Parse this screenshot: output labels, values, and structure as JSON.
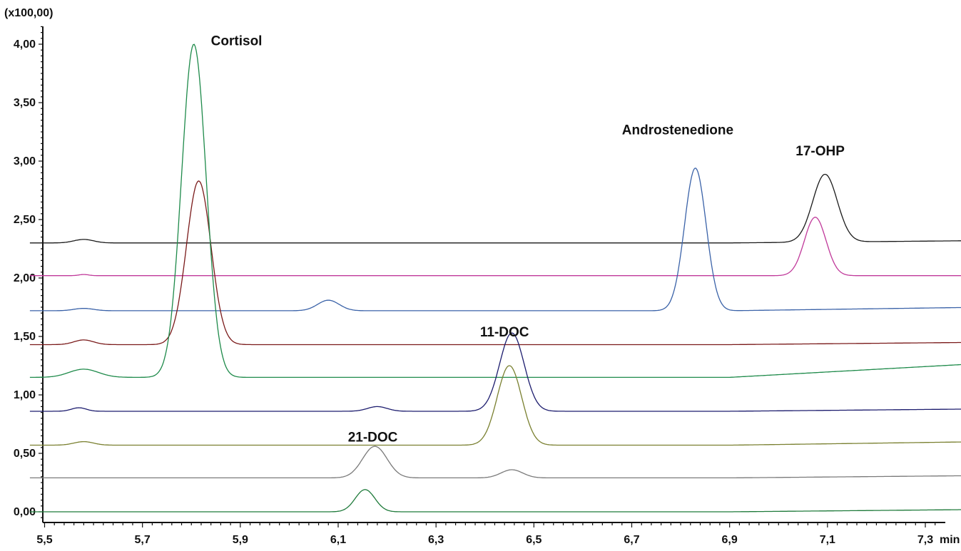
{
  "chart_data": {
    "type": "line",
    "title": "",
    "xlabel": "min",
    "ylabel": "(x100,00)",
    "xlim": [
      5.47,
      7.42
    ],
    "ylim": [
      -0.1,
      4.17
    ],
    "x_ticks": [
      5.5,
      5.7,
      5.9,
      6.1,
      6.3,
      6.5,
      6.7,
      6.9,
      7.1,
      7.3
    ],
    "x_tick_labels": [
      "5,5",
      "5,7",
      "5,9",
      "6,1",
      "6,3",
      "6,5",
      "6,7",
      "6,9",
      "7,1",
      "7,3"
    ],
    "y_ticks": [
      0,
      0.5,
      1,
      1.5,
      2,
      2.5,
      3,
      3.5,
      4
    ],
    "y_tick_labels": [
      "0,00",
      "0,50",
      "1,00",
      "1,50",
      "2,00",
      "2,50",
      "3,00",
      "3,50",
      "4,00"
    ],
    "grid": false,
    "series": [
      {
        "color": "#1a1a1a",
        "baseline": 2.3,
        "end": 2.32,
        "peaks": [
          [
            5.58,
            0.03,
            0.02
          ],
          [
            7.095,
            0.58,
            0.025
          ]
        ]
      },
      {
        "color": "#c0399a",
        "baseline": 2.02,
        "end": 2.02,
        "peaks": [
          [
            5.58,
            0.01,
            0.01
          ],
          [
            7.075,
            0.5,
            0.022
          ]
        ]
      },
      {
        "color": "#3a62a8",
        "baseline": 1.72,
        "end": 1.75,
        "peaks": [
          [
            5.58,
            0.02,
            0.02
          ],
          [
            6.08,
            0.09,
            0.022
          ],
          [
            6.83,
            1.22,
            0.022
          ]
        ]
      },
      {
        "color": "#7a1a1a",
        "baseline": 1.43,
        "end": 1.45,
        "peaks": [
          [
            5.58,
            0.04,
            0.02
          ],
          [
            5.815,
            1.4,
            0.025
          ]
        ]
      },
      {
        "color": "#1e8a4a",
        "baseline": 1.15,
        "end": 1.27,
        "peaks": [
          [
            5.58,
            0.07,
            0.03
          ],
          [
            5.805,
            2.85,
            0.025
          ]
        ]
      },
      {
        "color": "#1c1c6e",
        "baseline": 0.86,
        "end": 0.88,
        "peaks": [
          [
            5.57,
            0.03,
            0.015
          ],
          [
            6.18,
            0.04,
            0.02
          ],
          [
            6.455,
            0.67,
            0.025
          ]
        ]
      },
      {
        "color": "#7a8030",
        "baseline": 0.57,
        "end": 0.6,
        "peaks": [
          [
            5.58,
            0.03,
            0.02
          ],
          [
            6.45,
            0.68,
            0.025
          ]
        ]
      },
      {
        "color": "#7a7a7a",
        "baseline": 0.29,
        "end": 0.31,
        "peaks": [
          [
            6.175,
            0.27,
            0.025
          ],
          [
            6.455,
            0.07,
            0.022
          ]
        ]
      },
      {
        "color": "#1e7a3a",
        "baseline": 0.0,
        "end": 0.02,
        "peaks": [
          [
            6.155,
            0.19,
            0.02
          ]
        ]
      }
    ],
    "annotations": [
      {
        "text": "Cortisol",
        "x": 5.84,
        "y": 3.99
      },
      {
        "text": "Androstenedione",
        "x": 6.68,
        "y": 3.23
      },
      {
        "text": "17-OHP",
        "x": 7.035,
        "y": 3.05
      },
      {
        "text": "11-DOC",
        "x": 6.39,
        "y": 1.5
      },
      {
        "text": "21-DOC",
        "x": 6.12,
        "y": 0.6
      }
    ]
  }
}
